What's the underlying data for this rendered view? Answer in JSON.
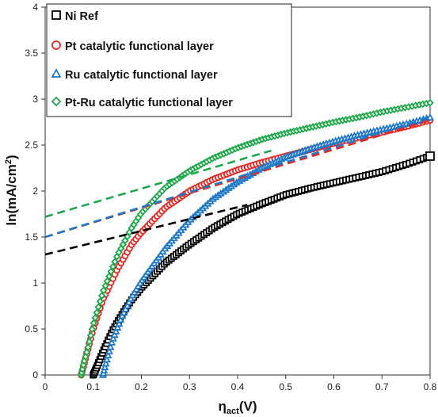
{
  "chart_data": {
    "type": "scatter",
    "xlabel_main": "η",
    "xlabel_sub": "act",
    "xlabel_unit": "(V)",
    "ylabel_main": "ln(mA/cm",
    "ylabel_sup": "2",
    "ylabel_end": ")",
    "xlim": [
      0,
      0.8
    ],
    "ylim": [
      0,
      4
    ],
    "x_ticks": [
      "0",
      "0.1",
      "0.2",
      "0.3",
      "0.4",
      "0.5",
      "0.6",
      "0.7",
      "0.8"
    ],
    "y_ticks": [
      "0",
      "0.5",
      "1",
      "1.5",
      "2",
      "2.5",
      "3",
      "3.5",
      "4"
    ],
    "legend_position": "top-left",
    "grid": false,
    "series": [
      {
        "name": "Ni Ref",
        "color": "#000000",
        "marker": "square",
        "points": [
          [
            0.1,
            0
          ],
          [
            0.11,
            0.12
          ],
          [
            0.12,
            0.25
          ],
          [
            0.14,
            0.48
          ],
          [
            0.16,
            0.66
          ],
          [
            0.18,
            0.82
          ],
          [
            0.2,
            0.95
          ],
          [
            0.25,
            1.22
          ],
          [
            0.3,
            1.42
          ],
          [
            0.35,
            1.6
          ],
          [
            0.4,
            1.75
          ],
          [
            0.45,
            1.86
          ],
          [
            0.5,
            1.96
          ],
          [
            0.55,
            2.03
          ],
          [
            0.6,
            2.09
          ],
          [
            0.65,
            2.15
          ],
          [
            0.7,
            2.21
          ],
          [
            0.75,
            2.29
          ],
          [
            0.8,
            2.38
          ]
        ],
        "tafel_fit": [
          [
            0,
            1.31
          ],
          [
            0.42,
            1.85
          ]
        ]
      },
      {
        "name": "Pt catalytic functional layer",
        "color": "#e8251f",
        "marker": "circle",
        "points": [
          [
            0.075,
            0
          ],
          [
            0.08,
            0.1
          ],
          [
            0.09,
            0.3
          ],
          [
            0.1,
            0.5
          ],
          [
            0.12,
            0.82
          ],
          [
            0.15,
            1.15
          ],
          [
            0.18,
            1.42
          ],
          [
            0.2,
            1.55
          ],
          [
            0.25,
            1.82
          ],
          [
            0.3,
            2.0
          ],
          [
            0.35,
            2.13
          ],
          [
            0.4,
            2.23
          ],
          [
            0.45,
            2.31
          ],
          [
            0.5,
            2.38
          ],
          [
            0.55,
            2.45
          ],
          [
            0.6,
            2.52
          ],
          [
            0.65,
            2.58
          ],
          [
            0.7,
            2.64
          ],
          [
            0.75,
            2.7
          ],
          [
            0.8,
            2.77
          ]
        ],
        "tafel_fit": [
          [
            0,
            1.5
          ],
          [
            0.8,
            2.77
          ]
        ]
      },
      {
        "name": "Ru catalytic functional layer",
        "color": "#1f78c8",
        "marker": "triangle",
        "points": [
          [
            0.12,
            0
          ],
          [
            0.13,
            0.2
          ],
          [
            0.14,
            0.38
          ],
          [
            0.16,
            0.64
          ],
          [
            0.18,
            0.85
          ],
          [
            0.2,
            1.02
          ],
          [
            0.25,
            1.38
          ],
          [
            0.3,
            1.68
          ],
          [
            0.35,
            1.92
          ],
          [
            0.4,
            2.1
          ],
          [
            0.45,
            2.25
          ],
          [
            0.5,
            2.37
          ],
          [
            0.55,
            2.46
          ],
          [
            0.6,
            2.54
          ],
          [
            0.65,
            2.61
          ],
          [
            0.7,
            2.67
          ],
          [
            0.75,
            2.73
          ],
          [
            0.8,
            2.8
          ]
        ],
        "tafel_fit": [
          [
            0,
            1.5
          ],
          [
            0.8,
            2.8
          ]
        ]
      },
      {
        "name": "Pt-Ru catalytic functional layer",
        "color": "#1fa84a",
        "marker": "diamond",
        "points": [
          [
            0.075,
            0
          ],
          [
            0.08,
            0.12
          ],
          [
            0.09,
            0.32
          ],
          [
            0.1,
            0.55
          ],
          [
            0.12,
            0.9
          ],
          [
            0.15,
            1.3
          ],
          [
            0.18,
            1.6
          ],
          [
            0.2,
            1.76
          ],
          [
            0.25,
            2.04
          ],
          [
            0.3,
            2.22
          ],
          [
            0.35,
            2.36
          ],
          [
            0.4,
            2.47
          ],
          [
            0.45,
            2.56
          ],
          [
            0.5,
            2.63
          ],
          [
            0.55,
            2.69
          ],
          [
            0.6,
            2.75
          ],
          [
            0.65,
            2.8
          ],
          [
            0.7,
            2.86
          ],
          [
            0.75,
            2.91
          ],
          [
            0.8,
            2.96
          ]
        ],
        "tafel_fit": [
          [
            0,
            1.72
          ],
          [
            0.47,
            2.44
          ]
        ]
      }
    ]
  }
}
